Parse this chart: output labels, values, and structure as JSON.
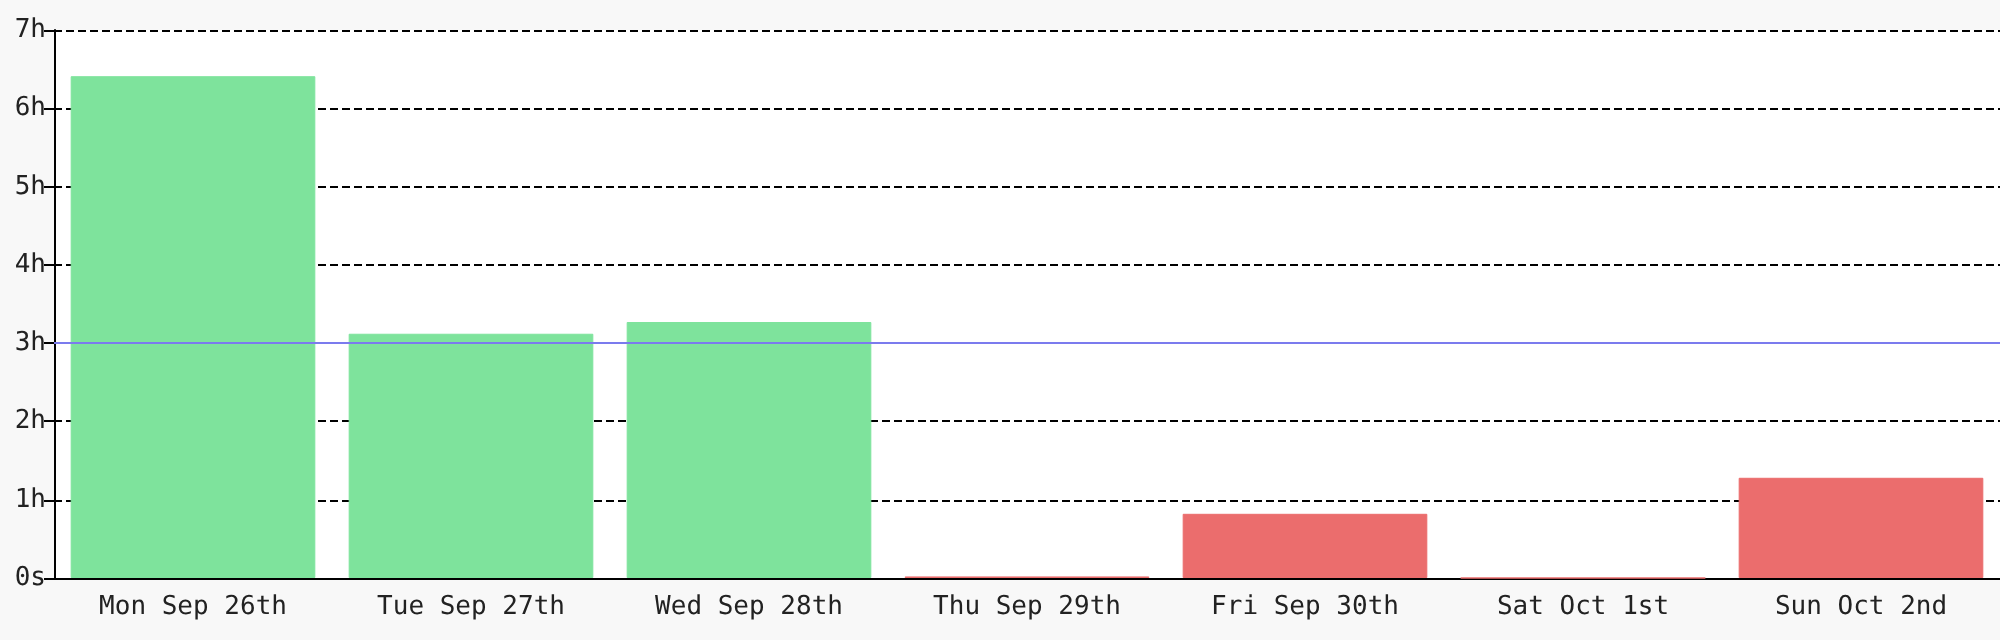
{
  "chart_data": {
    "type": "bar",
    "categories": [
      "Mon Sep 26th",
      "Tue Sep 27th",
      "Wed Sep 28th",
      "Thu Sep 29th",
      "Fri Sep 30th",
      "Sat Oct 1st",
      "Sun Oct 2nd"
    ],
    "values": [
      6.41,
      3.12,
      3.27,
      0.02,
      0.82,
      0,
      1.28
    ],
    "colors": [
      "#7ee39c",
      "#7ee39c",
      "#7ee39c",
      "#eb6d6d",
      "#eb6d6d",
      "#eb6d6d",
      "#eb6d6d"
    ],
    "ylim": [
      0,
      7
    ],
    "yticks": [
      {
        "value": 0,
        "label": "0s"
      },
      {
        "value": 1,
        "label": "1h"
      },
      {
        "value": 2,
        "label": "2h"
      },
      {
        "value": 3,
        "label": "3h"
      },
      {
        "value": 4,
        "label": "4h"
      },
      {
        "value": 5,
        "label": "5h"
      },
      {
        "value": 6,
        "label": "6h"
      },
      {
        "value": 7,
        "label": "7h"
      }
    ],
    "ref_lines": [
      {
        "axis": "y",
        "value": 3,
        "color": "#7b7bee"
      }
    ],
    "grid": "y"
  }
}
